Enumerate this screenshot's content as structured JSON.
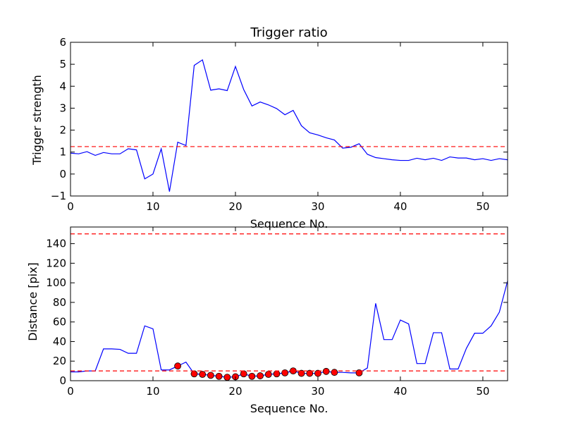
{
  "chart_data": [
    {
      "type": "line",
      "title": "Trigger ratio",
      "xlabel": "Sequence No.",
      "ylabel": "Trigger strength",
      "xlim": [
        0,
        53
      ],
      "ylim": [
        -1,
        6
      ],
      "xticks": [
        0,
        10,
        20,
        30,
        40,
        50
      ],
      "yticks": [
        -1,
        0,
        1,
        2,
        3,
        4,
        5,
        6
      ],
      "grid": false,
      "series": [
        {
          "color": "#0000ff",
          "style": "solid",
          "x": [
            0,
            1,
            2,
            3,
            4,
            5,
            6,
            7,
            8,
            9,
            10,
            11,
            12,
            13,
            14,
            15,
            16,
            17,
            18,
            19,
            20,
            21,
            22,
            23,
            24,
            25,
            26,
            27,
            28,
            29,
            30,
            31,
            32,
            33,
            34,
            35,
            36,
            37,
            38,
            39,
            40,
            41,
            42,
            43,
            44,
            45,
            46,
            47,
            48,
            49,
            50,
            51,
            52,
            53
          ],
          "y": [
            0.95,
            0.92,
            1.02,
            0.85,
            0.98,
            0.92,
            0.92,
            1.15,
            1.1,
            -0.22,
            0.0,
            1.15,
            -0.8,
            1.45,
            1.3,
            4.95,
            5.2,
            3.82,
            3.88,
            3.8,
            4.9,
            3.85,
            3.1,
            3.28,
            3.15,
            2.98,
            2.7,
            2.9,
            2.2,
            1.88,
            1.78,
            1.65,
            1.55,
            1.18,
            1.22,
            1.38,
            0.9,
            0.75,
            0.7,
            0.65,
            0.62,
            0.62,
            0.72,
            0.65,
            0.72,
            0.62,
            0.78,
            0.73,
            0.73,
            0.65,
            0.7,
            0.62,
            0.7,
            0.65
          ]
        },
        {
          "color": "#ff0000",
          "style": "dashed",
          "x": [
            0,
            53
          ],
          "y": [
            1.25,
            1.25
          ]
        }
      ]
    },
    {
      "type": "line",
      "title": "",
      "xlabel": "Sequence No.",
      "ylabel": "Distance [pix]",
      "xlim": [
        0,
        53
      ],
      "ylim": [
        0,
        157
      ],
      "xticks": [
        0,
        10,
        20,
        30,
        40,
        50
      ],
      "yticks": [
        0,
        20,
        40,
        60,
        80,
        100,
        120,
        140
      ],
      "grid": false,
      "series": [
        {
          "color": "#0000ff",
          "style": "solid",
          "x": [
            0,
            1,
            2,
            3,
            4,
            5,
            6,
            7,
            8,
            9,
            10,
            11,
            12,
            13,
            14,
            15,
            16,
            17,
            18,
            19,
            20,
            21,
            22,
            23,
            24,
            25,
            26,
            27,
            28,
            29,
            30,
            31,
            32,
            33,
            34,
            35,
            36,
            37,
            38,
            39,
            40,
            41,
            42,
            43,
            44,
            45,
            46,
            47,
            48,
            49,
            50,
            51,
            52,
            53
          ],
          "y": [
            9,
            9,
            10,
            10,
            32.5,
            32.5,
            32,
            28,
            28,
            56,
            53,
            11,
            11,
            15,
            19,
            7,
            6.5,
            5.5,
            4.5,
            3.5,
            4,
            7,
            4.5,
            5,
            6.5,
            7,
            8,
            10,
            7.5,
            7.5,
            7.5,
            9.5,
            8.5,
            8.5,
            8,
            8,
            13,
            79,
            42,
            42,
            62,
            58,
            17.5,
            17.5,
            49,
            49,
            12,
            12,
            33,
            48.5,
            48.5,
            56,
            70,
            102
          ]
        },
        {
          "color": "#ff0000",
          "style": "markers",
          "x": [
            13,
            15,
            16,
            17,
            18,
            19,
            20,
            21,
            22,
            23,
            24,
            25,
            26,
            27,
            28,
            29,
            30,
            31,
            32,
            35
          ],
          "y": [
            15,
            7,
            6.5,
            5.5,
            4.5,
            3.5,
            4,
            7,
            4.5,
            5,
            6.5,
            7,
            8,
            10,
            7.5,
            7.5,
            7.5,
            9.5,
            8.5,
            8
          ]
        },
        {
          "color": "#ff0000",
          "style": "dashed",
          "x": [
            0,
            53
          ],
          "y": [
            10,
            10
          ]
        },
        {
          "color": "#ff0000",
          "style": "dashed",
          "x": [
            0,
            53
          ],
          "y": [
            150,
            150
          ]
        }
      ]
    }
  ]
}
